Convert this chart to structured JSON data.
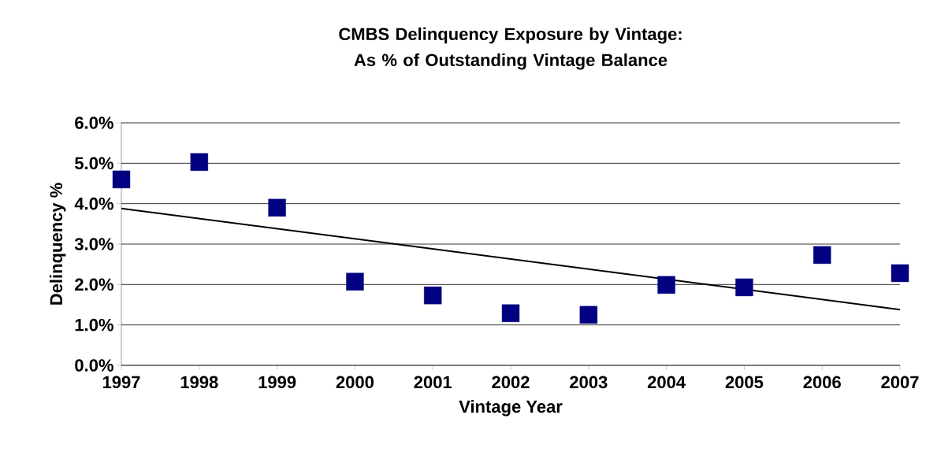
{
  "chart_data": {
    "type": "scatter",
    "title": "CMBS Delinquency Exposure by Vintage: As % of Outstanding Vintage Balance",
    "xlabel": "Vintage Year",
    "ylabel": "Delinquency %",
    "x": [
      1997,
      1998,
      1999,
      2000,
      2001,
      2002,
      2003,
      2004,
      2005,
      2006,
      2007
    ],
    "series": [
      {
        "color": "#000080",
        "marker": "square",
        "values": [
          4.6,
          5.03,
          3.9,
          2.07,
          1.73,
          1.29,
          1.25,
          1.99,
          1.93,
          2.73,
          2.28
        ]
      },
      {
        "type": "line",
        "color": "#000000",
        "marker": "none",
        "line_style": "solid",
        "x": [
          1997,
          2007
        ],
        "values": [
          3.88,
          1.38
        ]
      }
    ],
    "xlim": [
      1997,
      2007
    ],
    "xticks": [
      1997,
      1998,
      1999,
      2000,
      2001,
      2002,
      2003,
      2004,
      2005,
      2006,
      2007
    ],
    "ylim": [
      0,
      6
    ],
    "yticks": [
      {
        "value": 0,
        "label": "0.0%"
      },
      {
        "value": 1,
        "label": "1.0%"
      },
      {
        "value": 2,
        "label": "2.0%"
      },
      {
        "value": 3,
        "label": "3.0%"
      },
      {
        "value": 4,
        "label": "4.0%"
      },
      {
        "value": 5,
        "label": "5.0%"
      },
      {
        "value": 6,
        "label": "6.0%"
      }
    ],
    "grid": "y"
  }
}
